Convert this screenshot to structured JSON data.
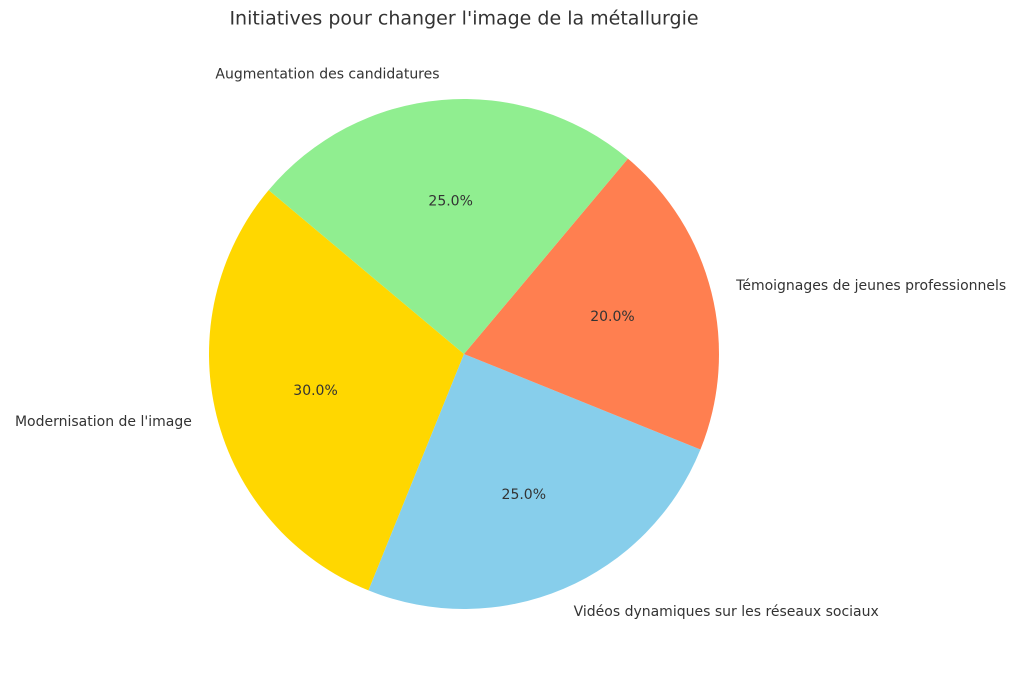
{
  "chart_data": {
    "type": "pie",
    "title": "Initiatives pour changer l'image de la métallurgie",
    "categories": [
      "Modernisation de l'image",
      "Vidéos dynamiques sur les réseaux sociaux",
      "Témoignages de jeunes professionnels",
      "Augmentation des candidatures"
    ],
    "values": [
      30,
      25,
      20,
      25
    ],
    "value_labels": [
      "30.0%",
      "25.0%",
      "20.0%",
      "25.0%"
    ],
    "colors": [
      "#ffd700",
      "#87ceeb",
      "#ff7f50",
      "#90ee90"
    ],
    "start_angle": 140,
    "direction": "counterclockwise"
  }
}
